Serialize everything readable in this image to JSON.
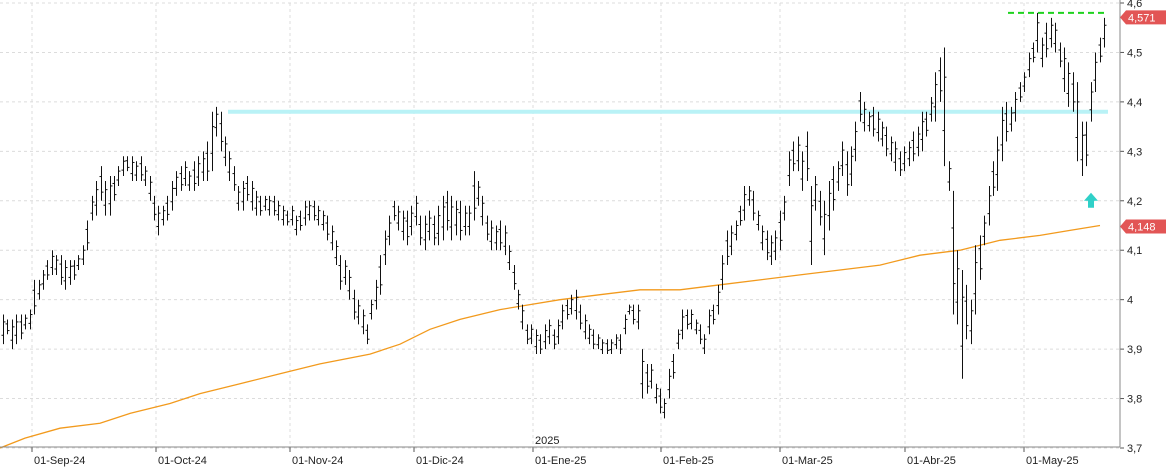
{
  "chart_data": {
    "type": "ohlc_bar",
    "ylim": [
      3.7,
      4.6
    ],
    "y_ticks": [
      "3,7",
      "3,8",
      "3,9",
      "4",
      "4,1",
      "4,2",
      "4,3",
      "4,4",
      "4,5",
      "4,6"
    ],
    "x_ticks": [
      "01-Sep-24",
      "01-Oct-24",
      "01-Nov-24",
      "01-Dic-24",
      "01-Ene-25",
      "01-Feb-25",
      "01-Mar-25",
      "01-Abr-25",
      "01-May-25"
    ],
    "year_label": "2025",
    "grid": true,
    "last_price_label": "4,571",
    "ma_label": "4,148",
    "resistance_level": 4.38,
    "recent_high_level": 4.58,
    "bars": [
      [
        3.91,
        3.97
      ],
      [
        3.93,
        3.96
      ],
      [
        3.9,
        3.96
      ],
      [
        3.91,
        3.97
      ],
      [
        3.92,
        3.97
      ],
      [
        3.94,
        3.97
      ],
      [
        3.94,
        3.98
      ],
      [
        3.97,
        4.04
      ],
      [
        4.0,
        4.04
      ],
      [
        4.02,
        4.06
      ],
      [
        4.04,
        4.08
      ],
      [
        4.05,
        4.1
      ],
      [
        4.05,
        4.09
      ],
      [
        4.03,
        4.09
      ],
      [
        4.02,
        4.08
      ],
      [
        4.03,
        4.08
      ],
      [
        4.04,
        4.08
      ],
      [
        4.06,
        4.09
      ],
      [
        4.07,
        4.11
      ],
      [
        4.1,
        4.16
      ],
      [
        4.16,
        4.21
      ],
      [
        4.17,
        4.24
      ],
      [
        4.2,
        4.27
      ],
      [
        4.17,
        4.24
      ],
      [
        4.17,
        4.25
      ],
      [
        4.2,
        4.25
      ],
      [
        4.23,
        4.27
      ],
      [
        4.25,
        4.29
      ],
      [
        4.26,
        4.29
      ],
      [
        4.24,
        4.29
      ],
      [
        4.24,
        4.28
      ],
      [
        4.24,
        4.29
      ],
      [
        4.23,
        4.27
      ],
      [
        4.2,
        4.25
      ],
      [
        4.16,
        4.21
      ],
      [
        4.13,
        4.19
      ],
      [
        4.15,
        4.19
      ],
      [
        4.16,
        4.21
      ],
      [
        4.18,
        4.24
      ],
      [
        4.21,
        4.26
      ],
      [
        4.22,
        4.27
      ],
      [
        4.23,
        4.28
      ],
      [
        4.22,
        4.26
      ],
      [
        4.22,
        4.28
      ],
      [
        4.23,
        4.29
      ],
      [
        4.24,
        4.3
      ],
      [
        4.24,
        4.32
      ],
      [
        4.26,
        4.38
      ],
      [
        4.33,
        4.39
      ],
      [
        4.3,
        4.38
      ],
      [
        4.27,
        4.33
      ],
      [
        4.24,
        4.3
      ],
      [
        4.22,
        4.27
      ],
      [
        4.18,
        4.23
      ],
      [
        4.18,
        4.24
      ],
      [
        4.2,
        4.25
      ],
      [
        4.18,
        4.24
      ],
      [
        4.17,
        4.22
      ],
      [
        4.17,
        4.21
      ],
      [
        4.18,
        4.21
      ],
      [
        4.17,
        4.21
      ],
      [
        4.17,
        4.21
      ],
      [
        4.16,
        4.2
      ],
      [
        4.15,
        4.19
      ],
      [
        4.15,
        4.18
      ],
      [
        4.15,
        4.19
      ],
      [
        4.13,
        4.17
      ],
      [
        4.14,
        4.18
      ],
      [
        4.15,
        4.2
      ],
      [
        4.16,
        4.2
      ],
      [
        4.16,
        4.2
      ],
      [
        4.15,
        4.19
      ],
      [
        4.14,
        4.18
      ],
      [
        4.12,
        4.17
      ],
      [
        4.1,
        4.15
      ],
      [
        4.07,
        4.12
      ],
      [
        4.02,
        4.09
      ],
      [
        4.03,
        4.08
      ],
      [
        4.0,
        4.06
      ],
      [
        3.96,
        4.02
      ],
      [
        3.95,
        4.0
      ],
      [
        3.93,
        3.98
      ],
      [
        3.91,
        3.95
      ],
      [
        3.96,
        4.0
      ],
      [
        3.98,
        4.04
      ],
      [
        4.01,
        4.09
      ],
      [
        4.07,
        4.14
      ],
      [
        4.11,
        4.17
      ],
      [
        4.16,
        4.2
      ],
      [
        4.14,
        4.19
      ],
      [
        4.12,
        4.18
      ],
      [
        4.11,
        4.18
      ],
      [
        4.13,
        4.19
      ],
      [
        4.15,
        4.21
      ],
      [
        4.11,
        4.17
      ],
      [
        4.1,
        4.17
      ],
      [
        4.12,
        4.18
      ],
      [
        4.11,
        4.17
      ],
      [
        4.11,
        4.19
      ],
      [
        4.12,
        4.21
      ],
      [
        4.14,
        4.22
      ],
      [
        4.12,
        4.21
      ],
      [
        4.13,
        4.2
      ],
      [
        4.12,
        4.2
      ],
      [
        4.13,
        4.19
      ],
      [
        4.13,
        4.19
      ],
      [
        4.16,
        4.26
      ],
      [
        4.19,
        4.24
      ],
      [
        4.15,
        4.21
      ],
      [
        4.12,
        4.17
      ],
      [
        4.1,
        4.16
      ],
      [
        4.1,
        4.15
      ],
      [
        4.1,
        4.16
      ],
      [
        4.09,
        4.15
      ],
      [
        4.06,
        4.11
      ],
      [
        4.02,
        4.07
      ],
      [
        3.98,
        4.02
      ],
      [
        3.94,
        3.99
      ],
      [
        3.91,
        3.95
      ],
      [
        3.91,
        3.95
      ],
      [
        3.89,
        3.94
      ],
      [
        3.89,
        3.93
      ],
      [
        3.9,
        3.95
      ],
      [
        3.91,
        3.96
      ],
      [
        3.9,
        3.94
      ],
      [
        3.91,
        3.96
      ],
      [
        3.94,
        3.99
      ],
      [
        3.96,
        4.0
      ],
      [
        3.97,
        4.01
      ],
      [
        3.96,
        4.02
      ],
      [
        3.94,
        3.99
      ],
      [
        3.92,
        3.97
      ],
      [
        3.91,
        3.95
      ],
      [
        3.9,
        3.94
      ],
      [
        3.9,
        3.93
      ],
      [
        3.89,
        3.92
      ],
      [
        3.89,
        3.92
      ],
      [
        3.89,
        3.92
      ],
      [
        3.9,
        3.93
      ],
      [
        3.89,
        3.93
      ],
      [
        3.93,
        3.97
      ],
      [
        3.97,
        3.99
      ],
      [
        3.95,
        3.99
      ],
      [
        3.94,
        3.99
      ],
      [
        3.8,
        3.9
      ],
      [
        3.81,
        3.87
      ],
      [
        3.82,
        3.87
      ],
      [
        3.79,
        3.83
      ],
      [
        3.77,
        3.82
      ],
      [
        3.76,
        3.8
      ],
      [
        3.8,
        3.86
      ],
      [
        3.84,
        3.89
      ],
      [
        3.9,
        3.94
      ],
      [
        3.92,
        3.98
      ],
      [
        3.94,
        3.98
      ],
      [
        3.94,
        3.98
      ],
      [
        3.93,
        3.96
      ],
      [
        3.91,
        3.95
      ],
      [
        3.89,
        3.93
      ],
      [
        3.93,
        3.98
      ],
      [
        3.95,
        3.99
      ],
      [
        3.97,
        4.03
      ],
      [
        4.02,
        4.09
      ],
      [
        4.07,
        4.14
      ],
      [
        4.09,
        4.15
      ],
      [
        4.12,
        4.16
      ],
      [
        4.15,
        4.19
      ],
      [
        4.16,
        4.23
      ],
      [
        4.19,
        4.23
      ],
      [
        4.16,
        4.22
      ],
      [
        4.14,
        4.18
      ],
      [
        4.1,
        4.15
      ],
      [
        4.08,
        4.14
      ],
      [
        4.07,
        4.13
      ],
      [
        4.08,
        4.14
      ],
      [
        4.1,
        4.18
      ],
      [
        4.16,
        4.21
      ],
      [
        4.23,
        4.3
      ],
      [
        4.26,
        4.32
      ],
      [
        4.26,
        4.33
      ],
      [
        4.22,
        4.3
      ],
      [
        4.24,
        4.34
      ],
      [
        4.07,
        4.23
      ],
      [
        4.18,
        4.25
      ],
      [
        4.15,
        4.22
      ],
      [
        4.09,
        4.2
      ],
      [
        4.14,
        4.24
      ],
      [
        4.18,
        4.27
      ],
      [
        4.22,
        4.28
      ],
      [
        4.25,
        4.32
      ],
      [
        4.21,
        4.3
      ],
      [
        4.23,
        4.31
      ],
      [
        4.28,
        4.36
      ],
      [
        4.36,
        4.42
      ],
      [
        4.34,
        4.4
      ],
      [
        4.34,
        4.38
      ],
      [
        4.33,
        4.39
      ],
      [
        4.32,
        4.38
      ],
      [
        4.31,
        4.36
      ],
      [
        4.29,
        4.35
      ],
      [
        4.28,
        4.33
      ],
      [
        4.26,
        4.32
      ],
      [
        4.25,
        4.3
      ],
      [
        4.26,
        4.31
      ],
      [
        4.27,
        4.32
      ],
      [
        4.28,
        4.34
      ],
      [
        4.29,
        4.35
      ],
      [
        4.3,
        4.38
      ],
      [
        4.33,
        4.38
      ],
      [
        4.36,
        4.41
      ],
      [
        4.36,
        4.46
      ],
      [
        4.4,
        4.49
      ],
      [
        4.27,
        4.51
      ],
      [
        4.22,
        4.28
      ],
      [
        3.97,
        4.22
      ],
      [
        3.95,
        4.1
      ],
      [
        3.84,
        4.06
      ],
      [
        3.92,
        4.03
      ],
      [
        3.91,
        4.0
      ],
      [
        3.97,
        4.11
      ],
      [
        4.04,
        4.13
      ],
      [
        4.11,
        4.17
      ],
      [
        4.15,
        4.23
      ],
      [
        4.21,
        4.28
      ],
      [
        4.22,
        4.33
      ],
      [
        4.28,
        4.39
      ],
      [
        4.32,
        4.4
      ],
      [
        4.34,
        4.39
      ],
      [
        4.36,
        4.42
      ],
      [
        4.4,
        4.44
      ],
      [
        4.42,
        4.46
      ],
      [
        4.45,
        4.5
      ],
      [
        4.48,
        4.52
      ],
      [
        4.5,
        4.58
      ],
      [
        4.47,
        4.53
      ],
      [
        4.49,
        4.56
      ],
      [
        4.51,
        4.57
      ],
      [
        4.5,
        4.56
      ],
      [
        4.47,
        4.52
      ],
      [
        4.42,
        4.51
      ],
      [
        4.39,
        4.48
      ],
      [
        4.38,
        4.46
      ],
      [
        4.28,
        4.44
      ],
      [
        4.25,
        4.36
      ],
      [
        4.27,
        4.36
      ],
      [
        4.36,
        4.44
      ],
      [
        4.42,
        4.5
      ],
      [
        4.48,
        4.53
      ],
      [
        4.51,
        4.57
      ]
    ],
    "ma": [
      [
        0,
        3.7
      ],
      [
        25,
        3.72
      ],
      [
        60,
        3.74
      ],
      [
        100,
        3.75
      ],
      [
        130,
        3.77
      ],
      [
        170,
        3.79
      ],
      [
        200,
        3.81
      ],
      [
        240,
        3.83
      ],
      [
        280,
        3.85
      ],
      [
        320,
        3.87
      ],
      [
        370,
        3.89
      ],
      [
        400,
        3.91
      ],
      [
        430,
        3.94
      ],
      [
        460,
        3.96
      ],
      [
        500,
        3.98
      ],
      [
        530,
        3.99
      ],
      [
        560,
        4.0
      ],
      [
        600,
        4.01
      ],
      [
        640,
        4.02
      ],
      [
        680,
        4.02
      ],
      [
        720,
        4.03
      ],
      [
        760,
        4.04
      ],
      [
        800,
        4.05
      ],
      [
        840,
        4.06
      ],
      [
        880,
        4.07
      ],
      [
        920,
        4.09
      ],
      [
        960,
        4.1
      ],
      [
        1000,
        4.12
      ],
      [
        1040,
        4.13
      ],
      [
        1070,
        4.14
      ],
      [
        1100,
        4.15
      ]
    ],
    "arrow_value": 4.2
  }
}
